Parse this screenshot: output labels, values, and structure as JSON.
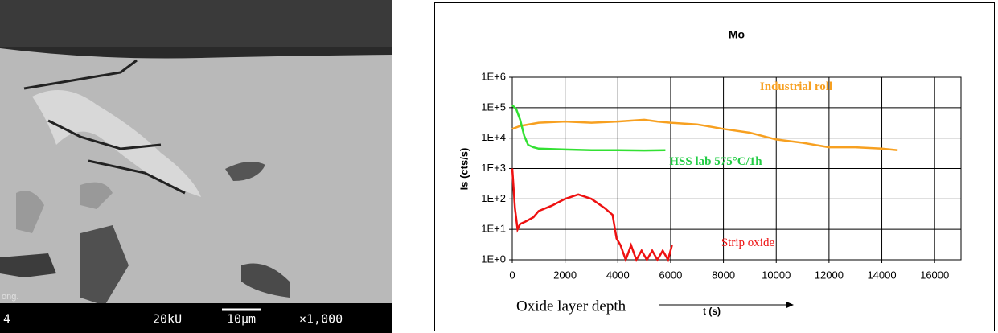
{
  "micrograph": {
    "mode": "ong.",
    "id": "4",
    "voltage": "20kU",
    "scale": "10µm",
    "magnification": "×1,000"
  },
  "chart_data": {
    "type": "line",
    "title": "Mo",
    "y_label": "Is (cts/s)",
    "x_label": "t (s)",
    "annotations": [
      "Industrial roll",
      "HSS lab 575°C/1h",
      "Strip oxide",
      "Oxide layer depth"
    ],
    "log_y": true,
    "grid": true,
    "xlim": [
      0,
      17000
    ],
    "xticks": [
      0,
      2000,
      4000,
      6000,
      8000,
      10000,
      12000,
      14000,
      16000
    ],
    "ylim": [
      1,
      1000000
    ],
    "yticks": [
      {
        "value": 1,
        "label": "1E+0"
      },
      {
        "value": 10,
        "label": "1E+1"
      },
      {
        "value": 100,
        "label": "1E+2"
      },
      {
        "value": 1000,
        "label": "1E+3"
      },
      {
        "value": 10000,
        "label": "1E+4"
      },
      {
        "value": 100000,
        "label": "1E+5"
      },
      {
        "value": 1000000,
        "label": "1E+6"
      }
    ],
    "series": [
      {
        "color": "#f7a020",
        "x": [
          0,
          300,
          1000,
          2000,
          3000,
          4000,
          5000,
          5500,
          6000,
          7000,
          8000,
          9000,
          10000,
          11000,
          12000,
          13000,
          14000,
          14600
        ],
        "values": [
          20000,
          25000,
          32000,
          35000,
          32000,
          35000,
          40000,
          35000,
          32000,
          28000,
          20000,
          15000,
          9000,
          7000,
          5000,
          5000,
          4500,
          4000
        ]
      },
      {
        "color": "#33e033",
        "x": [
          0,
          150,
          300,
          450,
          600,
          800,
          1000,
          2000,
          3000,
          4000,
          5000,
          5800
        ],
        "values": [
          120000,
          90000,
          40000,
          12000,
          6000,
          5000,
          4500,
          4200,
          4000,
          4000,
          3900,
          4000
        ]
      },
      {
        "color": "#ee1111",
        "x": [
          0,
          100,
          200,
          300,
          500,
          800,
          1000,
          1500,
          2000,
          2500,
          3000,
          3500,
          3800,
          3950,
          4100,
          4300,
          4500,
          4700,
          4900,
          5100,
          5300,
          5500,
          5700,
          5900,
          6050
        ],
        "values": [
          1000,
          50,
          10,
          15,
          18,
          25,
          40,
          60,
          100,
          140,
          100,
          50,
          30,
          5,
          3,
          1,
          3,
          1,
          2,
          1,
          2,
          1,
          2,
          1,
          3
        ]
      }
    ]
  }
}
